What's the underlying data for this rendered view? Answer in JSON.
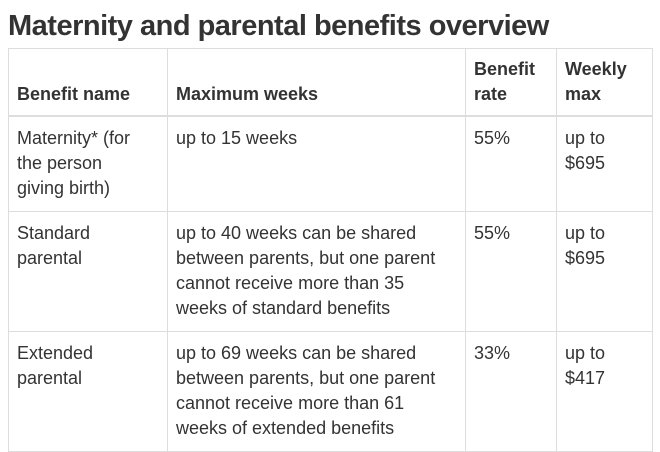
{
  "page": {
    "title": "Maternity and parental benefits overview"
  },
  "colors": {
    "text": "#333333",
    "border": "#dddddd",
    "background": "#ffffff"
  },
  "table": {
    "headers": [
      "Benefit name",
      "Maximum weeks",
      "Benefit\nrate",
      "Weekly\nmax"
    ],
    "rows": [
      [
        "Maternity* (for\nthe person\ngiving birth)",
        "up to 15 weeks",
        "55%",
        "up to\n$695"
      ],
      [
        "Standard\nparental",
        "up to 40 weeks can be shared\nbetween parents, but one parent\ncannot receive more than 35\nweeks of standard benefits",
        "55%",
        "up to\n$695"
      ],
      [
        "Extended\nparental",
        "up to 69 weeks can be shared\nbetween parents, but one parent\ncannot receive more than 61\nweeks of extended benefits",
        "33%",
        "up to\n$417"
      ]
    ]
  }
}
